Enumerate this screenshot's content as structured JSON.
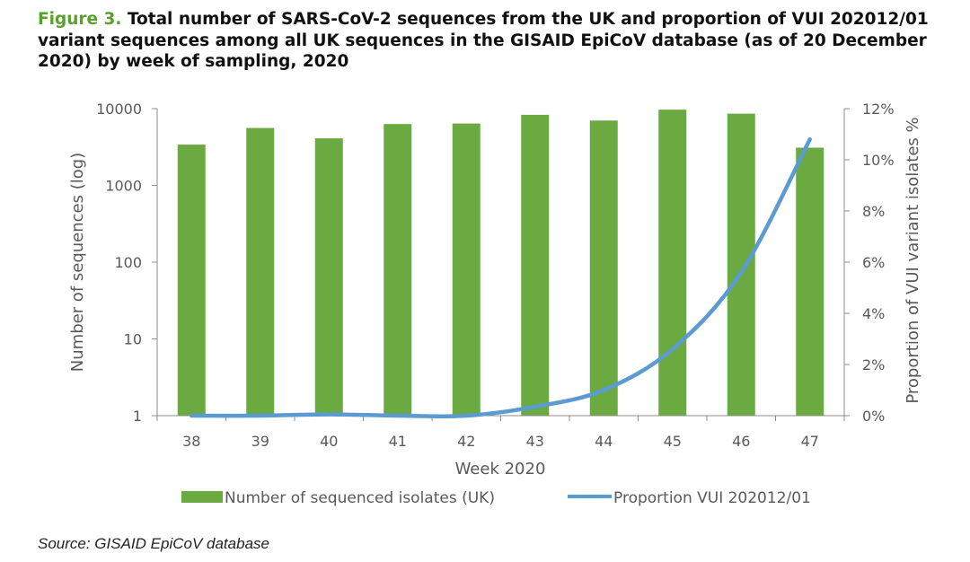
{
  "title": {
    "figure_label": "Figure 3.",
    "text": "Total number of SARS-CoV-2 sequences from the UK and proportion of VUI 202012/01 variant sequences among all UK sequences in the GISAID EpiCoV database (as of 20 December 2020) by week of sampling, 2020"
  },
  "source": "Source: GISAID EpiCoV database",
  "colors": {
    "bar": "#6aaa40",
    "line": "#5b9bd1",
    "axis": "#8c8c8c",
    "text": "#595959"
  },
  "chart_data": {
    "type": "bar",
    "categories": [
      "38",
      "39",
      "40",
      "41",
      "42",
      "43",
      "44",
      "45",
      "46",
      "47"
    ],
    "series": [
      {
        "name": "Number of sequenced isolates (UK)",
        "type": "bar",
        "axis": "left",
        "values": [
          3400,
          5600,
          4100,
          6300,
          6400,
          8300,
          7000,
          9700,
          8600,
          3100
        ]
      },
      {
        "name": "Proportion VUI 202012/01",
        "type": "line",
        "axis": "right",
        "values": [
          0.0,
          0.0,
          0.05,
          0.0,
          0.0,
          0.35,
          1.0,
          2.6,
          5.6,
          10.8
        ]
      }
    ],
    "xlabel": "Week 2020",
    "ylabel_left": "Number of sequences (log)",
    "ylabel_right": "Proportion of VUI variant isolates %",
    "y_left_scale": "log",
    "ylim_left": [
      1,
      10000
    ],
    "y_left_ticks": [
      "1",
      "10",
      "100",
      "1000",
      "10000"
    ],
    "ylim_right": [
      0,
      12
    ],
    "y_right_ticks": [
      "0%",
      "2%",
      "4%",
      "6%",
      "8%",
      "10%",
      "12%"
    ],
    "grid": false,
    "legend_position": "bottom"
  }
}
